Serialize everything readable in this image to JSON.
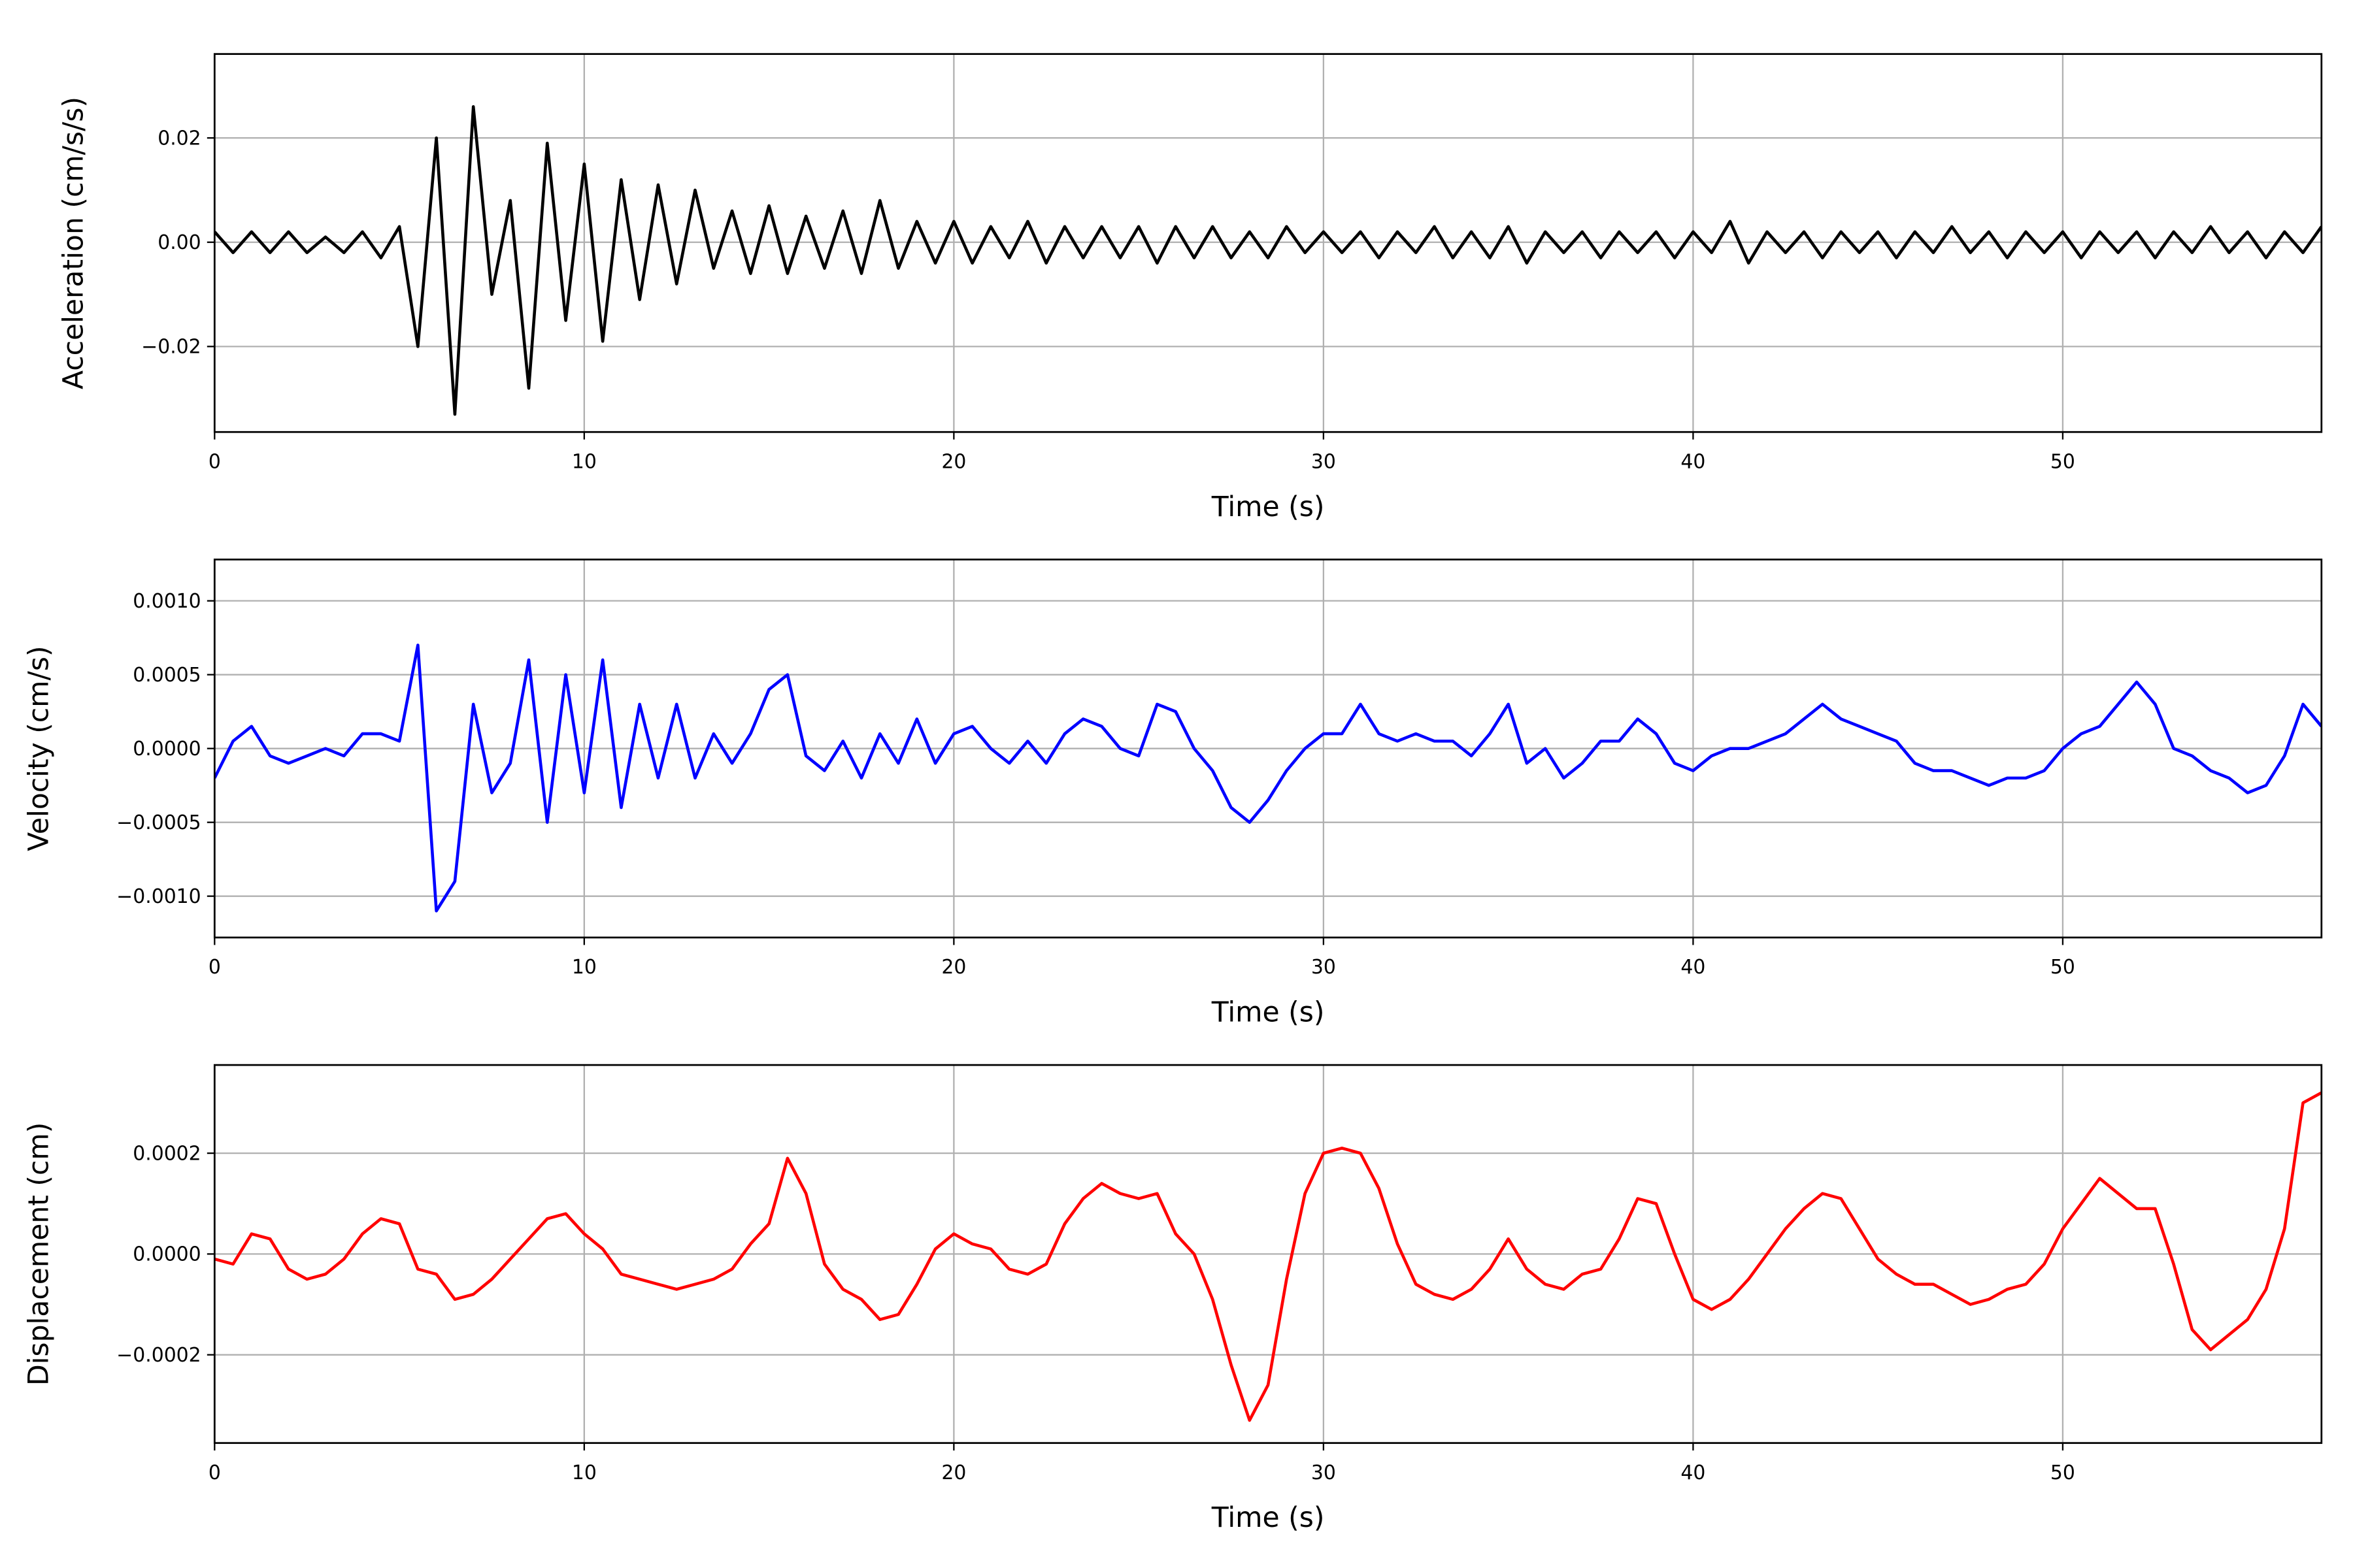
{
  "chart_data": [
    {
      "type": "line",
      "color": "#000000",
      "grid": true,
      "xlabel": "Time (s)",
      "ylabel": "Acceleration (cm/s/s)",
      "xlim": [
        0,
        57
      ],
      "xticks": [
        0,
        10,
        20,
        30,
        40,
        50
      ],
      "ylim": [
        -0.0364,
        0.0361
      ],
      "yticks": [
        {
          "value": -0.02,
          "label": "−0.02"
        },
        {
          "value": 0,
          "label": "0.00"
        },
        {
          "value": 0.02,
          "label": "0.02"
        }
      ],
      "x": [
        0,
        0.5,
        1,
        1.5,
        2,
        2.5,
        3,
        3.5,
        4,
        4.5,
        5,
        5.5,
        6,
        6.5,
        7,
        7.5,
        8,
        8.5,
        9,
        9.5,
        10,
        10.5,
        11,
        11.5,
        12,
        12.5,
        13,
        13.5,
        14,
        14.5,
        15,
        15.5,
        16,
        16.5,
        17,
        17.5,
        18,
        18.5,
        19,
        19.5,
        20,
        20.5,
        21,
        21.5,
        22,
        22.5,
        23,
        23.5,
        24,
        24.5,
        25,
        25.5,
        26,
        26.5,
        27,
        27.5,
        28,
        28.5,
        29,
        29.5,
        30,
        30.5,
        31,
        31.5,
        32,
        32.5,
        33,
        33.5,
        34,
        34.5,
        35,
        35.5,
        36,
        36.5,
        37,
        37.5,
        38,
        38.5,
        39,
        39.5,
        40,
        40.5,
        41,
        41.5,
        42,
        42.5,
        43,
        43.5,
        44,
        44.5,
        45,
        45.5,
        46,
        46.5,
        47,
        47.5,
        48,
        48.5,
        49,
        49.5,
        50,
        50.5,
        51,
        51.5,
        52,
        52.5,
        53,
        53.5,
        54,
        54.5,
        55,
        55.5,
        56,
        56.5,
        57
      ],
      "values": [
        0.002,
        -0.002,
        0.002,
        -0.002,
        0.002,
        -0.002,
        0.001,
        -0.002,
        0.002,
        -0.003,
        0.003,
        -0.02,
        0.02,
        -0.033,
        0.026,
        -0.01,
        0.008,
        -0.028,
        0.019,
        -0.015,
        0.015,
        -0.019,
        0.012,
        -0.011,
        0.011,
        -0.008,
        0.01,
        -0.005,
        0.006,
        -0.006,
        0.007,
        -0.006,
        0.005,
        -0.005,
        0.006,
        -0.006,
        0.008,
        -0.005,
        0.004,
        -0.004,
        0.004,
        -0.004,
        0.003,
        -0.003,
        0.004,
        -0.004,
        0.003,
        -0.003,
        0.003,
        -0.003,
        0.003,
        -0.004,
        0.003,
        -0.003,
        0.003,
        -0.003,
        0.002,
        -0.003,
        0.003,
        -0.002,
        0.002,
        -0.002,
        0.002,
        -0.003,
        0.002,
        -0.002,
        0.003,
        -0.003,
        0.002,
        -0.003,
        0.003,
        -0.004,
        0.002,
        -0.002,
        0.002,
        -0.003,
        0.002,
        -0.002,
        0.002,
        -0.003,
        0.002,
        -0.002,
        0.004,
        -0.004,
        0.002,
        -0.002,
        0.002,
        -0.003,
        0.002,
        -0.002,
        0.002,
        -0.003,
        0.002,
        -0.002,
        0.003,
        -0.002,
        0.002,
        -0.003,
        0.002,
        -0.002,
        0.002,
        -0.003,
        0.002,
        -0.002,
        0.002,
        -0.003,
        0.002,
        -0.002,
        0.003,
        -0.002,
        0.002,
        -0.003,
        0.002,
        -0.002,
        0.003
      ]
    },
    {
      "type": "line",
      "color": "#0000ff",
      "grid": true,
      "xlabel": "Time (s)",
      "ylabel": "Velocity (cm/s)",
      "xlim": [
        0,
        57
      ],
      "xticks": [
        0,
        10,
        20,
        30,
        40,
        50
      ],
      "ylim": [
        -0.00128,
        0.00128
      ],
      "yticks": [
        {
          "value": -0.001,
          "label": "−0.0010"
        },
        {
          "value": -0.0005,
          "label": "−0.0005"
        },
        {
          "value": 0,
          "label": "0.0000"
        },
        {
          "value": 0.0005,
          "label": "0.0005"
        },
        {
          "value": 0.001,
          "label": "0.0010"
        }
      ],
      "x": [
        0,
        0.5,
        1,
        1.5,
        2,
        2.5,
        3,
        3.5,
        4,
        4.5,
        5,
        5.5,
        6,
        6.5,
        7,
        7.5,
        8,
        8.5,
        9,
        9.5,
        10,
        10.5,
        11,
        11.5,
        12,
        12.5,
        13,
        13.5,
        14,
        14.5,
        15,
        15.5,
        16,
        16.5,
        17,
        17.5,
        18,
        18.5,
        19,
        19.5,
        20,
        20.5,
        21,
        21.5,
        22,
        22.5,
        23,
        23.5,
        24,
        24.5,
        25,
        25.5,
        26,
        26.5,
        27,
        27.5,
        28,
        28.5,
        29,
        29.5,
        30,
        30.5,
        31,
        31.5,
        32,
        32.5,
        33,
        33.5,
        34,
        34.5,
        35,
        35.5,
        36,
        36.5,
        37,
        37.5,
        38,
        38.5,
        39,
        39.5,
        40,
        40.5,
        41,
        41.5,
        42,
        42.5,
        43,
        43.5,
        44,
        44.5,
        45,
        45.5,
        46,
        46.5,
        47,
        47.5,
        48,
        48.5,
        49,
        49.5,
        50,
        50.5,
        51,
        51.5,
        52,
        52.5,
        53,
        53.5,
        54,
        54.5,
        55,
        55.5,
        56,
        56.5,
        57
      ],
      "values": [
        -0.0002,
        5e-05,
        0.00015,
        -5e-05,
        -0.0001,
        -5e-05,
        0,
        -5e-05,
        0.0001,
        0.0001,
        5e-05,
        0.0007,
        -0.0011,
        -0.0009,
        0.0003,
        -0.0003,
        -0.0001,
        0.0006,
        -0.0005,
        0.0005,
        -0.0003,
        0.0006,
        -0.0004,
        0.0003,
        -0.0002,
        0.0003,
        -0.0002,
        0.0001,
        -0.0001,
        0.0001,
        0.0004,
        0.0005,
        -5e-05,
        -0.00015,
        5e-05,
        -0.0002,
        0.0001,
        -0.0001,
        0.0002,
        -0.0001,
        0.0001,
        0.00015,
        0,
        -0.0001,
        5e-05,
        -0.0001,
        0.0001,
        0.0002,
        0.00015,
        0,
        -5e-05,
        0.0003,
        0.00025,
        0,
        -0.00015,
        -0.0004,
        -0.0005,
        -0.00035,
        -0.00015,
        0,
        0.0001,
        0.0001,
        0.0003,
        0.0001,
        5e-05,
        0.0001,
        5e-05,
        5e-05,
        -5e-05,
        0.0001,
        0.0003,
        -0.0001,
        0,
        -0.0002,
        -0.0001,
        5e-05,
        5e-05,
        0.0002,
        0.0001,
        -0.0001,
        -0.00015,
        -5e-05,
        0,
        0,
        5e-05,
        0.0001,
        0.0002,
        0.0003,
        0.0002,
        0.00015,
        0.0001,
        5e-05,
        -0.0001,
        -0.00015,
        -0.00015,
        -0.0002,
        -0.00025,
        -0.0002,
        -0.0002,
        -0.00015,
        0,
        0.0001,
        0.00015,
        0.0003,
        0.00045,
        0.0003,
        0,
        -5e-05,
        -0.00015,
        -0.0002,
        -0.0003,
        -0.00025,
        -5e-05,
        0.0003,
        0.00015
      ]
    },
    {
      "type": "line",
      "color": "#ff0000",
      "grid": true,
      "xlabel": "Time (s)",
      "ylabel": "Displacement (cm)",
      "xlim": [
        0,
        57
      ],
      "xticks": [
        0,
        10,
        20,
        30,
        40,
        50
      ],
      "ylim": [
        -0.000375,
        0.000375
      ],
      "yticks": [
        {
          "value": -0.0002,
          "label": "−0.0002"
        },
        {
          "value": 0,
          "label": "0.0000"
        },
        {
          "value": 0.0002,
          "label": "0.0002"
        }
      ],
      "x": [
        0,
        0.5,
        1,
        1.5,
        2,
        2.5,
        3,
        3.5,
        4,
        4.5,
        5,
        5.5,
        6,
        6.5,
        7,
        7.5,
        8,
        8.5,
        9,
        9.5,
        10,
        10.5,
        11,
        11.5,
        12,
        12.5,
        13,
        13.5,
        14,
        14.5,
        15,
        15.5,
        16,
        16.5,
        17,
        17.5,
        18,
        18.5,
        19,
        19.5,
        20,
        20.5,
        21,
        21.5,
        22,
        22.5,
        23,
        23.5,
        24,
        24.5,
        25,
        25.5,
        26,
        26.5,
        27,
        27.5,
        28,
        28.5,
        29,
        29.5,
        30,
        30.5,
        31,
        31.5,
        32,
        32.5,
        33,
        33.5,
        34,
        34.5,
        35,
        35.5,
        36,
        36.5,
        37,
        37.5,
        38,
        38.5,
        39,
        39.5,
        40,
        40.5,
        41,
        41.5,
        42,
        42.5,
        43,
        43.5,
        44,
        44.5,
        45,
        45.5,
        46,
        46.5,
        47,
        47.5,
        48,
        48.5,
        49,
        49.5,
        50,
        50.5,
        51,
        51.5,
        52,
        52.5,
        53,
        53.5,
        54,
        54.5,
        55,
        55.5,
        56,
        56.5,
        57
      ],
      "values": [
        -1e-05,
        -2e-05,
        4e-05,
        3e-05,
        -3e-05,
        -5e-05,
        -4e-05,
        -1e-05,
        4e-05,
        7e-05,
        6e-05,
        -3e-05,
        -4e-05,
        -9e-05,
        -8e-05,
        -5e-05,
        -1e-05,
        3e-05,
        7e-05,
        8e-05,
        4e-05,
        1e-05,
        -4e-05,
        -5e-05,
        -6e-05,
        -7e-05,
        -6e-05,
        -5e-05,
        -3e-05,
        2e-05,
        6e-05,
        0.00019,
        0.00012,
        -2e-05,
        -7e-05,
        -9e-05,
        -0.00013,
        -0.00012,
        -6e-05,
        1e-05,
        4e-05,
        2e-05,
        1e-05,
        -3e-05,
        -4e-05,
        -2e-05,
        6e-05,
        0.00011,
        0.00014,
        0.00012,
        0.00011,
        0.00012,
        4e-05,
        0,
        -9e-05,
        -0.00022,
        -0.00033,
        -0.00026,
        -5e-05,
        0.00012,
        0.0002,
        0.00021,
        0.0002,
        0.00013,
        2e-05,
        -6e-05,
        -8e-05,
        -9e-05,
        -7e-05,
        -3e-05,
        3e-05,
        -3e-05,
        -6e-05,
        -7e-05,
        -4e-05,
        -3e-05,
        3e-05,
        0.00011,
        0.0001,
        0,
        -9e-05,
        -0.00011,
        -9e-05,
        -5e-05,
        0,
        5e-05,
        9e-05,
        0.00012,
        0.00011,
        5e-05,
        -1e-05,
        -4e-05,
        -6e-05,
        -6e-05,
        -8e-05,
        -0.0001,
        -9e-05,
        -7e-05,
        -6e-05,
        -2e-05,
        5e-05,
        0.0001,
        0.00015,
        0.00012,
        9e-05,
        9e-05,
        -2e-05,
        -0.00015,
        -0.00019,
        -0.00016,
        -0.00013,
        -7e-05,
        5e-05,
        0.0003,
        0.00032
      ]
    }
  ]
}
